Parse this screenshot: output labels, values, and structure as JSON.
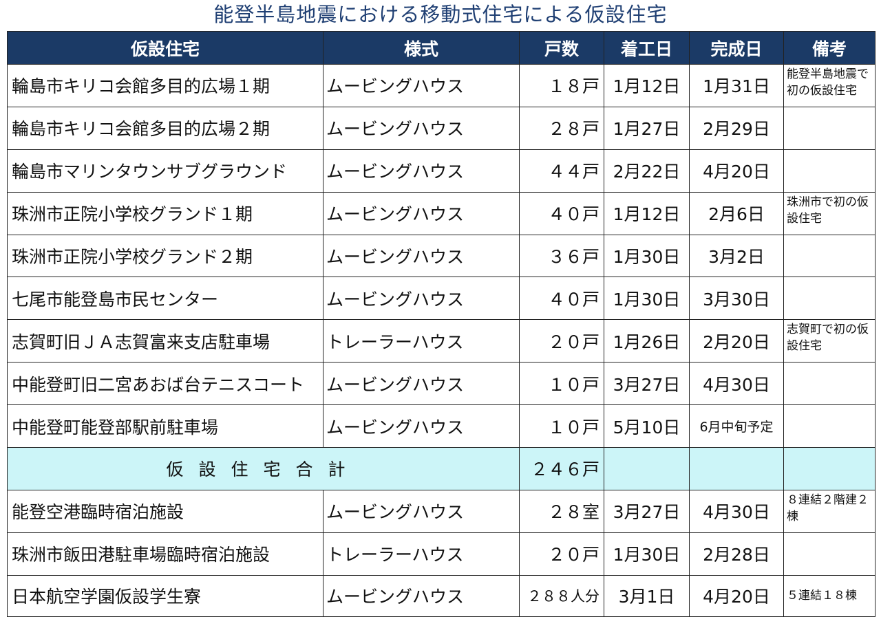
{
  "title": "能登半島地震における移動式住宅による仮設住宅",
  "headers": {
    "housing": "仮設住宅",
    "style": "様式",
    "units": "戸数",
    "start": "着工日",
    "complete": "完成日",
    "notes": "備考"
  },
  "rows": [
    {
      "name": "輪島市キリコ会館多目的広場１期",
      "style": "ムービングハウス",
      "units": "１８戸",
      "start": "1月12日",
      "complete": "1月31日",
      "note": "能登半島地震で初の仮設住宅"
    },
    {
      "name": "輪島市キリコ会館多目的広場２期",
      "style": "ムービングハウス",
      "units": "２８戸",
      "start": "1月27日",
      "complete": "2月29日",
      "note": ""
    },
    {
      "name": "輪島市マリンタウンサブグラウンド",
      "style": "ムービングハウス",
      "units": "４４戸",
      "start": "2月22日",
      "complete": "4月20日",
      "note": ""
    },
    {
      "name": "珠洲市正院小学校グランド１期",
      "style": "ムービングハウス",
      "units": "４０戸",
      "start": "1月12日",
      "complete": "2月6日",
      "note": "珠洲市で初の仮設住宅"
    },
    {
      "name": "珠洲市正院小学校グランド２期",
      "style": "ムービングハウス",
      "units": "３６戸",
      "start": "1月30日",
      "complete": "3月2日",
      "note": ""
    },
    {
      "name": "七尾市能登島市民センター",
      "style": "ムービングハウス",
      "units": "４０戸",
      "start": "1月30日",
      "complete": "3月30日",
      "note": ""
    },
    {
      "name": "志賀町旧ＪＡ志賀富来支店駐車場",
      "style": "トレーラーハウス",
      "units": "２０戸",
      "start": "1月26日",
      "complete": "2月20日",
      "note": "志賀町で初の仮設住宅"
    },
    {
      "name": "中能登町旧二宮あおば台テニスコート",
      "style": "ムービングハウス",
      "units": "１０戸",
      "start": "3月27日",
      "complete": "4月30日",
      "note": ""
    },
    {
      "name": "中能登町能登部駅前駐車場",
      "style": "ムービングハウス",
      "units": "１０戸",
      "start": "5月10日",
      "complete": "6月中旬予定",
      "note": ""
    }
  ],
  "total": {
    "label": "仮設住宅合計",
    "units": "２４６戸"
  },
  "extra_rows": [
    {
      "name": "能登空港臨時宿泊施設",
      "style": "ムービングハウス",
      "units": "２８室",
      "start": "3月27日",
      "complete": "4月30日",
      "note": "８連結２階建２棟"
    },
    {
      "name": "珠洲市飯田港駐車場臨時宿泊施設",
      "style": "トレーラーハウス",
      "units": "２０戸",
      "start": "1月30日",
      "complete": "2月28日",
      "note": ""
    },
    {
      "name": "日本航空学園仮設学生寮",
      "style": "ムービングハウス",
      "units": "２８８人分",
      "start": "3月1日",
      "complete": "4月20日",
      "note": "５連結１８棟"
    }
  ],
  "colors": {
    "header_bg": "#1b3a66",
    "title_text": "#1f3f73",
    "total_row_bg": "#ccf5f8"
  }
}
